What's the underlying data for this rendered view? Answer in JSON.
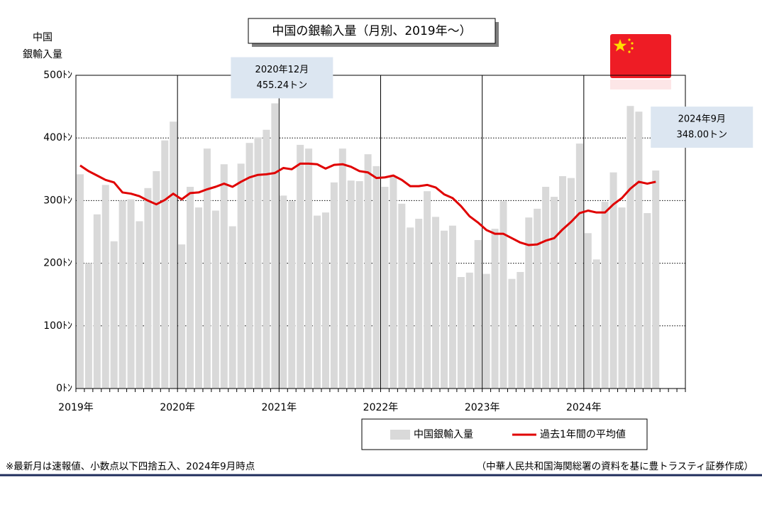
{
  "chart_data": {
    "type": "bar_line",
    "title": "中国の銀輸入量（月別、2019年～）",
    "y_label": [
      "中国",
      "銀輸入量"
    ],
    "categories": [
      "2019年",
      null,
      null,
      null,
      null,
      null,
      null,
      null,
      null,
      null,
      null,
      null,
      "2020年",
      null,
      null,
      null,
      null,
      null,
      null,
      null,
      null,
      null,
      null,
      null,
      "2021年",
      null,
      null,
      null,
      null,
      null,
      null,
      null,
      null,
      null,
      null,
      null,
      "2022年",
      null,
      null,
      null,
      null,
      null,
      null,
      null,
      null,
      null,
      null,
      null,
      "2023年",
      null,
      null,
      null,
      null,
      null,
      null,
      null,
      null,
      null,
      null,
      null,
      "2024年",
      null,
      null,
      null,
      null,
      null,
      null,
      null,
      null
    ],
    "series": [
      {
        "name": "中国銀輸入量",
        "kind": "bar",
        "color": "#d9d9d9",
        "values": [
          342,
          200,
          278,
          325,
          235,
          300,
          302,
          267,
          320,
          347,
          396,
          426,
          230,
          322,
          289,
          383,
          284,
          358,
          259,
          359,
          392,
          401,
          413,
          455.24,
          308,
          299,
          389,
          383,
          276,
          281,
          329,
          383,
          332,
          331,
          374,
          355,
          322,
          339,
          295,
          257,
          271,
          315,
          274,
          252,
          260,
          178,
          185,
          237,
          183,
          255,
          299,
          175,
          186,
          273,
          287,
          322,
          306,
          339,
          336,
          391,
          248,
          206,
          298,
          345,
          289,
          451,
          442,
          280,
          348.0
        ],
        "value_labels": [
          null,
          null,
          null,
          null,
          null,
          null,
          null,
          null,
          null,
          null,
          null,
          null,
          null,
          null,
          null,
          null,
          null,
          null,
          null,
          null,
          null,
          null,
          null,
          "455.24トン",
          null,
          null,
          null,
          null,
          null,
          null,
          null,
          null,
          null,
          null,
          null,
          null,
          null,
          null,
          null,
          null,
          null,
          null,
          null,
          null,
          null,
          null,
          null,
          null,
          null,
          null,
          null,
          null,
          null,
          null,
          null,
          null,
          null,
          null,
          null,
          null,
          null,
          null,
          null,
          null,
          null,
          null,
          null,
          null,
          "348.00トン"
        ],
        "label_titles": [
          null,
          null,
          null,
          null,
          null,
          null,
          null,
          null,
          null,
          null,
          null,
          null,
          null,
          null,
          null,
          null,
          null,
          null,
          null,
          null,
          null,
          null,
          null,
          "2020年12月",
          null,
          null,
          null,
          null,
          null,
          null,
          null,
          null,
          null,
          null,
          null,
          null,
          null,
          null,
          null,
          null,
          null,
          null,
          null,
          null,
          null,
          null,
          null,
          null,
          null,
          null,
          null,
          null,
          null,
          null,
          null,
          null,
          null,
          null,
          null,
          null,
          null,
          null,
          null,
          null,
          null,
          null,
          null,
          null,
          "2024年9月"
        ]
      },
      {
        "name": "過去1年間の平均値",
        "kind": "line",
        "color": "#e00000",
        "values": [
          356,
          347,
          340,
          333,
          329,
          313,
          311,
          307,
          300,
          294,
          301,
          311,
          302,
          312,
          313,
          318,
          322,
          327,
          322,
          330,
          337,
          341,
          342,
          344,
          352,
          350,
          359,
          359,
          358,
          351,
          357,
          358,
          354,
          347,
          345,
          336,
          337,
          340,
          333,
          323,
          323,
          325,
          321,
          310,
          304,
          291,
          275,
          265,
          253,
          247,
          247,
          240,
          233,
          229,
          230,
          236,
          240,
          254,
          266,
          280,
          284,
          281,
          281,
          294,
          304,
          319,
          330,
          327,
          330
        ]
      }
    ],
    "ylim": [
      0,
      500
    ],
    "yticks": [
      {
        "value": 0,
        "label": "0ﾄﾝ"
      },
      {
        "value": 100,
        "label": "100ﾄﾝ"
      },
      {
        "value": 200,
        "label": "200ﾄﾝ"
      },
      {
        "value": 300,
        "label": "300ﾄﾝ"
      },
      {
        "value": 400,
        "label": "400ﾄﾝ"
      },
      {
        "value": 500,
        "label": "500ﾄﾝ"
      }
    ],
    "grid": true,
    "note": "※最新月は速報値、小数点以下四捨五入、2024年9月時点",
    "source": "（中華人民共和国海関総署の資料を基に豊トラスティ証券作成）"
  }
}
